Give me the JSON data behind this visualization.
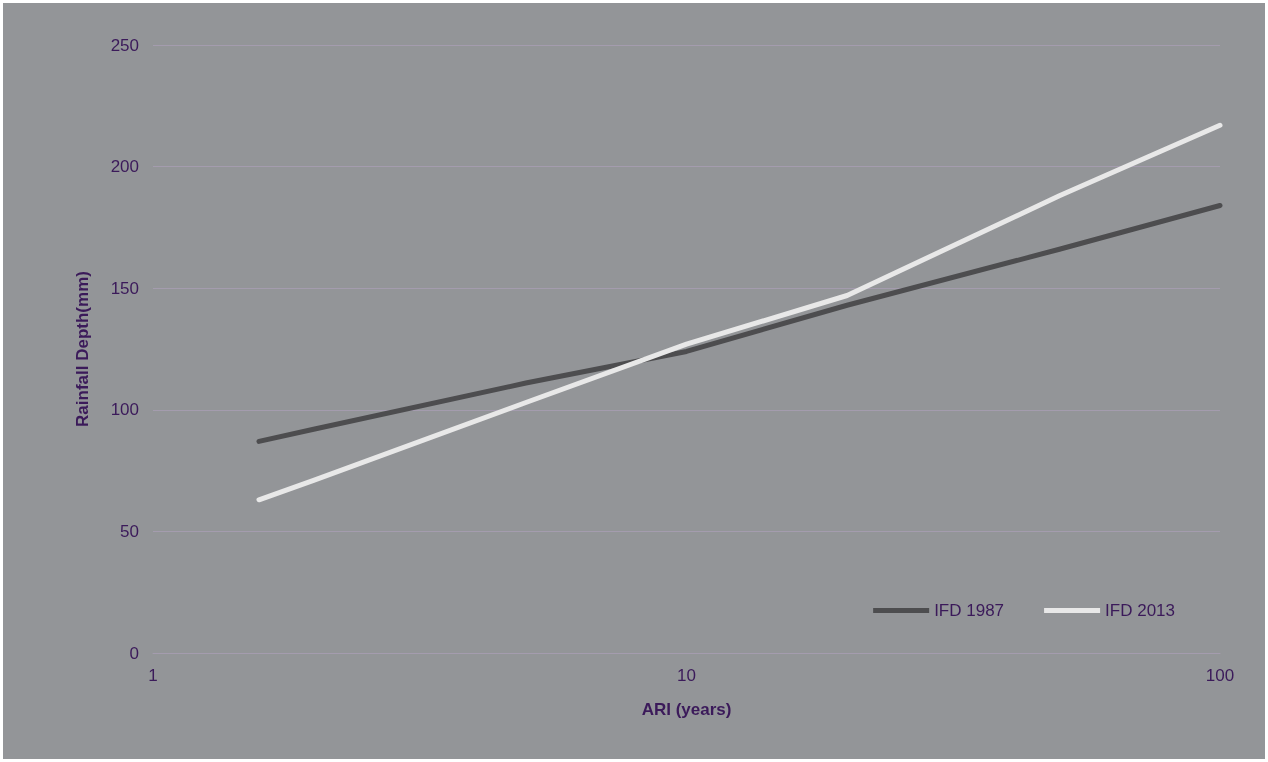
{
  "chart_data": {
    "type": "line",
    "xlabel": "ARI (years)",
    "ylabel": "Rainfall Depth(mm)",
    "log": "x",
    "xlim": [
      1,
      100
    ],
    "xticks": [
      1,
      10,
      100
    ],
    "ylim": [
      0,
      250
    ],
    "yticks": [
      0,
      50,
      100,
      150,
      200,
      250
    ],
    "grid": "y",
    "legend": "bottom right",
    "marker": "none",
    "line_style": "solid",
    "series": [
      {
        "name": "IFD 1987",
        "color": "#4d4d4f",
        "x": [
          1.58,
          2,
          5,
          10,
          20,
          50,
          100
        ],
        "values": [
          87,
          92,
          111,
          124,
          143,
          166,
          184
        ]
      },
      {
        "name": "IFD 2013",
        "color": "#e8e8e8",
        "x": [
          1.58,
          2,
          5,
          10,
          20,
          50,
          100
        ],
        "values": [
          63,
          71,
          103,
          127,
          147,
          188,
          217
        ]
      }
    ]
  }
}
